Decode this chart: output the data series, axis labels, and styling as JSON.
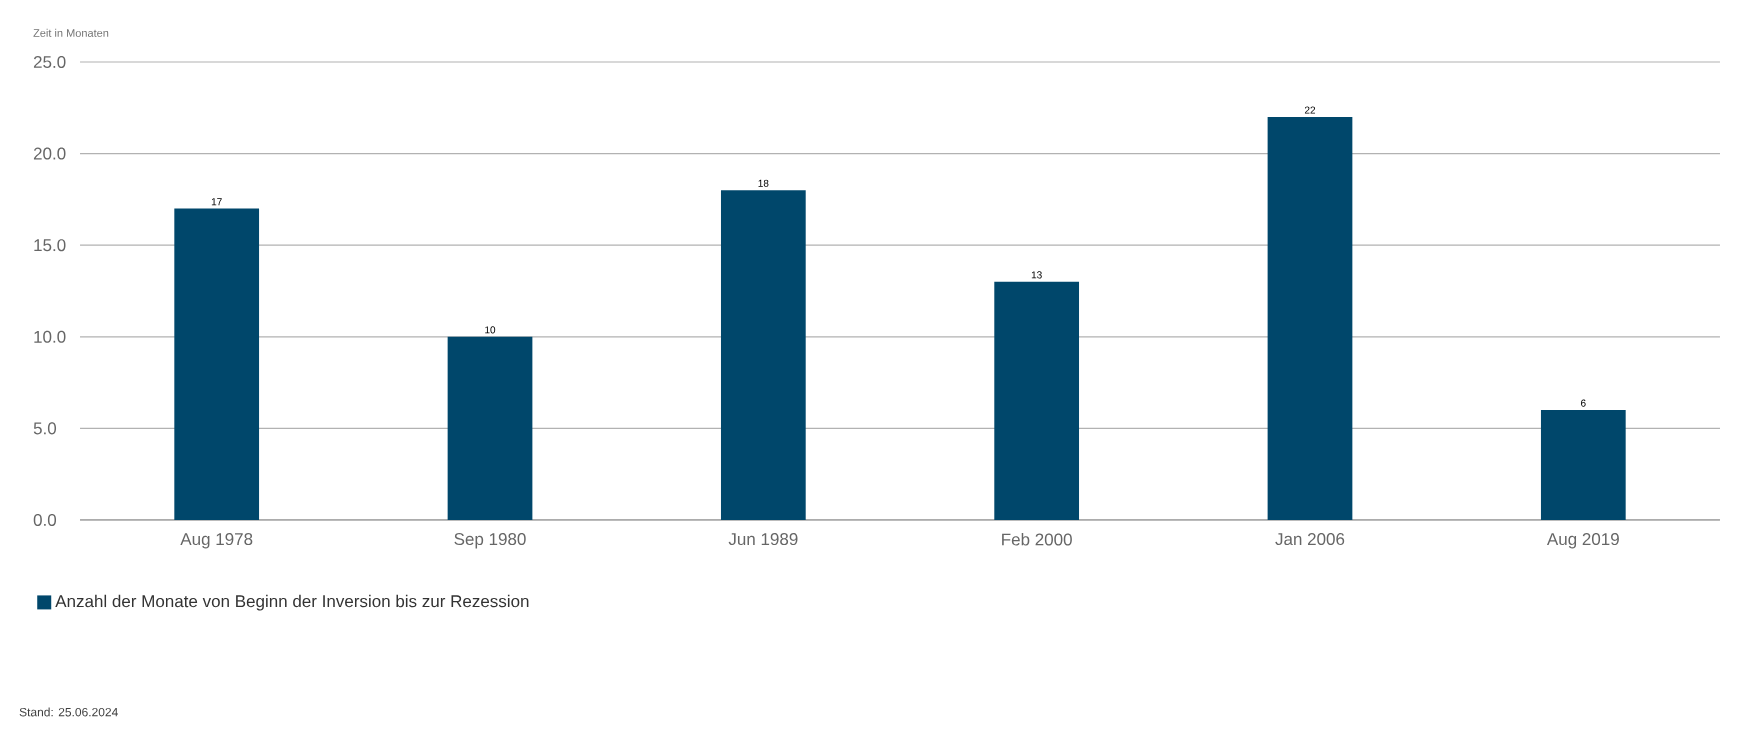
{
  "chart_data": {
    "type": "bar",
    "ylabel": "Zeit in Monaten",
    "categories": [
      "Aug 1978",
      "Sep 1980",
      "Jun 1989",
      "Feb 2000",
      "Jan 2006",
      "Aug 2019"
    ],
    "series": [
      {
        "name": "Anzahl der Monate von Beginn der Inversion bis zur Rezession",
        "color": "#00476b",
        "values": [
          17,
          10,
          18,
          13,
          22,
          6
        ]
      }
    ],
    "ylim": [
      0,
      25
    ],
    "yticks": [
      {
        "value": 0,
        "label": "0.0"
      },
      {
        "value": 5,
        "label": "5.0"
      },
      {
        "value": 10,
        "label": "10.0"
      },
      {
        "value": 15,
        "label": "15.0"
      },
      {
        "value": 20,
        "label": "20.0"
      },
      {
        "value": 25,
        "label": "25.0"
      }
    ],
    "grid": "y",
    "legend": "bottom left",
    "data_labels": true,
    "annotations": [
      "Stand: 25.06.2024"
    ]
  }
}
